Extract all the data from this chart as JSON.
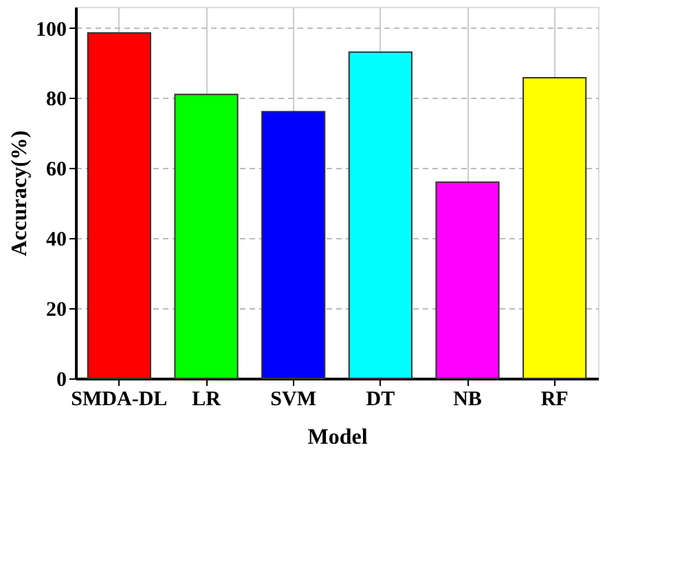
{
  "chart_data": {
    "type": "bar",
    "xlabel": "Model",
    "ylabel": "Accuracy(%)",
    "categories": [
      "SMDA-DL",
      "LR",
      "SVM",
      "DT",
      "NB",
      "RF"
    ],
    "values": [
      98.6,
      81.0,
      76.1,
      93.1,
      56.0,
      85.8
    ],
    "colors": [
      "#ff0000",
      "#00ff00",
      "#0000ff",
      "#00ffff",
      "#ff00ff",
      "#ffff00"
    ],
    "ylim": [
      0,
      106
    ],
    "yticks": [
      0,
      20,
      40,
      60,
      80,
      100
    ],
    "grid": true
  }
}
